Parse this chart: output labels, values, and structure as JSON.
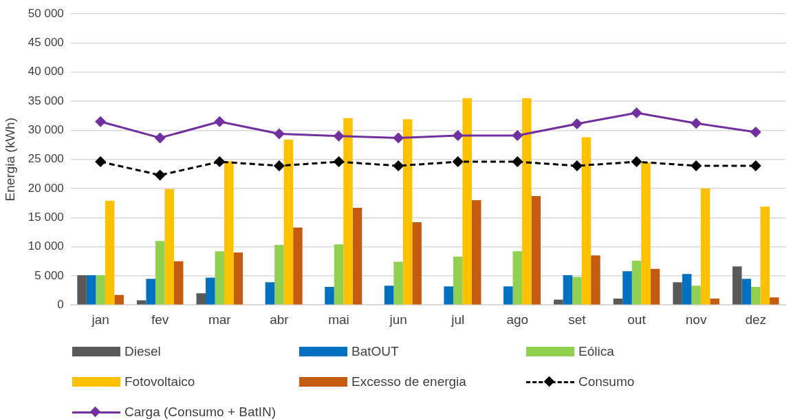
{
  "chart_data": {
    "type": "bar",
    "ylabel": "Energia (kWh)",
    "categories": [
      "jan",
      "fev",
      "mar",
      "abr",
      "mai",
      "jun",
      "jul",
      "ago",
      "set",
      "out",
      "nov",
      "dez"
    ],
    "series": [
      {
        "name": "Diesel",
        "color": "#595959",
        "values": [
          5100,
          800,
          2000,
          null,
          0,
          null,
          0,
          0,
          900,
          1100,
          3900,
          6600
        ]
      },
      {
        "name": "BatOUT",
        "color": "#0070c0",
        "values": [
          5100,
          4500,
          4700,
          3900,
          3100,
          3300,
          3200,
          3200,
          5100,
          5800,
          5300,
          4500
        ]
      },
      {
        "name": "Eólica",
        "color": "#92d050",
        "values": [
          5100,
          11000,
          9200,
          10300,
          10400,
          7400,
          8300,
          9200,
          4800,
          7600,
          3300,
          3100
        ]
      },
      {
        "name": "Fotovoltaico",
        "color": "#ffc000",
        "values": [
          17900,
          19900,
          24700,
          28400,
          32100,
          31900,
          35500,
          35500,
          28800,
          24500,
          20000,
          16900
        ]
      },
      {
        "name": "Excesso de energia",
        "color": "#c55a11",
        "values": [
          1700,
          7500,
          9000,
          13300,
          16700,
          14200,
          18000,
          18700,
          8500,
          6200,
          1100,
          1300
        ]
      },
      {
        "name": "Consumo",
        "type": "line",
        "color": "#000000",
        "line_style": "dashed",
        "marker": "diamond",
        "values": [
          24600,
          22300,
          24600,
          23900,
          24600,
          23900,
          24600,
          24600,
          23900,
          24600,
          23900,
          23900
        ]
      },
      {
        "name": "Carga (Consumo + BatIN)",
        "type": "line",
        "color": "#7030a0",
        "line_style": "solid",
        "marker": "diamond",
        "values": [
          31500,
          28700,
          31500,
          29400,
          29000,
          28700,
          29100,
          29100,
          31100,
          33000,
          31200,
          29700
        ]
      }
    ],
    "ylim": [
      0,
      50000
    ],
    "yticks": [
      0,
      {
        "value": 5000,
        "label": "5 000"
      },
      {
        "value": 10000,
        "label": "10 000"
      },
      {
        "value": 15000,
        "label": "15 000"
      },
      {
        "value": 20000,
        "label": "20 000"
      },
      {
        "value": 25000,
        "label": "25 000"
      },
      {
        "value": 30000,
        "label": "30 000"
      },
      {
        "value": 35000,
        "label": "35 000"
      },
      {
        "value": 40000,
        "label": "40 000"
      },
      {
        "value": 45000,
        "label": "45 000"
      },
      {
        "value": 50000,
        "label": "50 000"
      }
    ],
    "grid": "y",
    "legend": "bottom"
  }
}
